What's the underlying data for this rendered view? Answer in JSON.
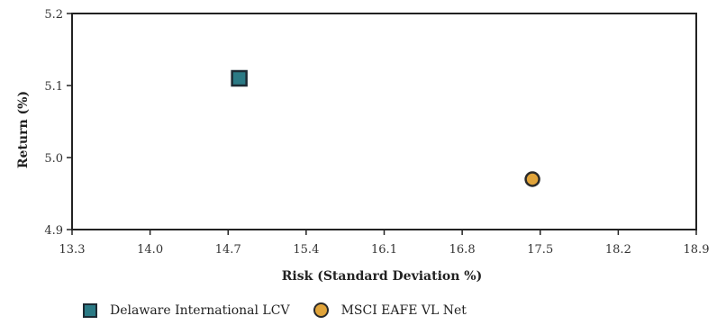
{
  "chart_data": {
    "type": "scatter",
    "title": "",
    "xlabel": "Risk (Standard Deviation %)",
    "ylabel": "Return (%)",
    "xlim": [
      13.3,
      18.9
    ],
    "ylim": [
      4.9,
      5.2
    ],
    "x_ticks": [
      "13.3",
      "14.0",
      "14.7",
      "15.4",
      "16.1",
      "16.8",
      "17.5",
      "18.2",
      "18.9"
    ],
    "y_ticks": [
      "5.2",
      "5.1",
      "5.0",
      "4.9"
    ],
    "grid": false,
    "legend_position": "bottom",
    "series": [
      {
        "name": "Delaware International LCV",
        "marker": "square",
        "color": "#2b7a85",
        "x": [
          14.8
        ],
        "y": [
          5.11
        ]
      },
      {
        "name": "MSCI EAFE VL Net",
        "marker": "circle",
        "color": "#e1a43a",
        "x": [
          17.43
        ],
        "y": [
          4.97
        ]
      }
    ]
  }
}
